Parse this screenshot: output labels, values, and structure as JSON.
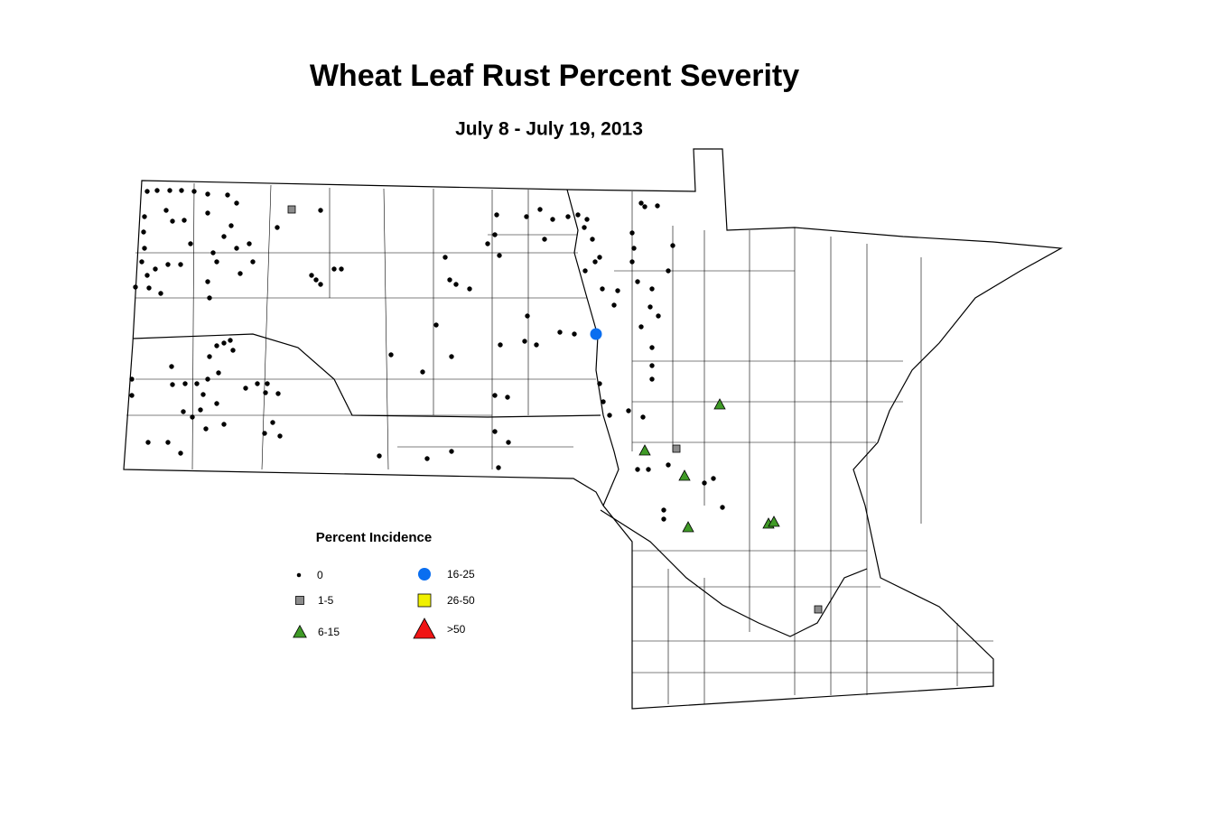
{
  "title": "Wheat Leaf Rust Percent Severity",
  "subtitle": "July 8 - July 19, 2013",
  "legend": {
    "title": "Percent Incidence",
    "items": [
      {
        "label": "0",
        "shape": "dot",
        "color": "#000000"
      },
      {
        "label": "1-5",
        "shape": "square",
        "color": "#8c8c8c"
      },
      {
        "label": "6-15",
        "shape": "triangle",
        "color": "#3f9a26"
      },
      {
        "label": "16-25",
        "shape": "circle",
        "color": "#0a6ef0"
      },
      {
        "label": "26-50",
        "shape": "square",
        "color": "#f0f000"
      },
      {
        "label": ">50",
        "shape": "triangle",
        "color": "#f01414"
      }
    ]
  }
}
